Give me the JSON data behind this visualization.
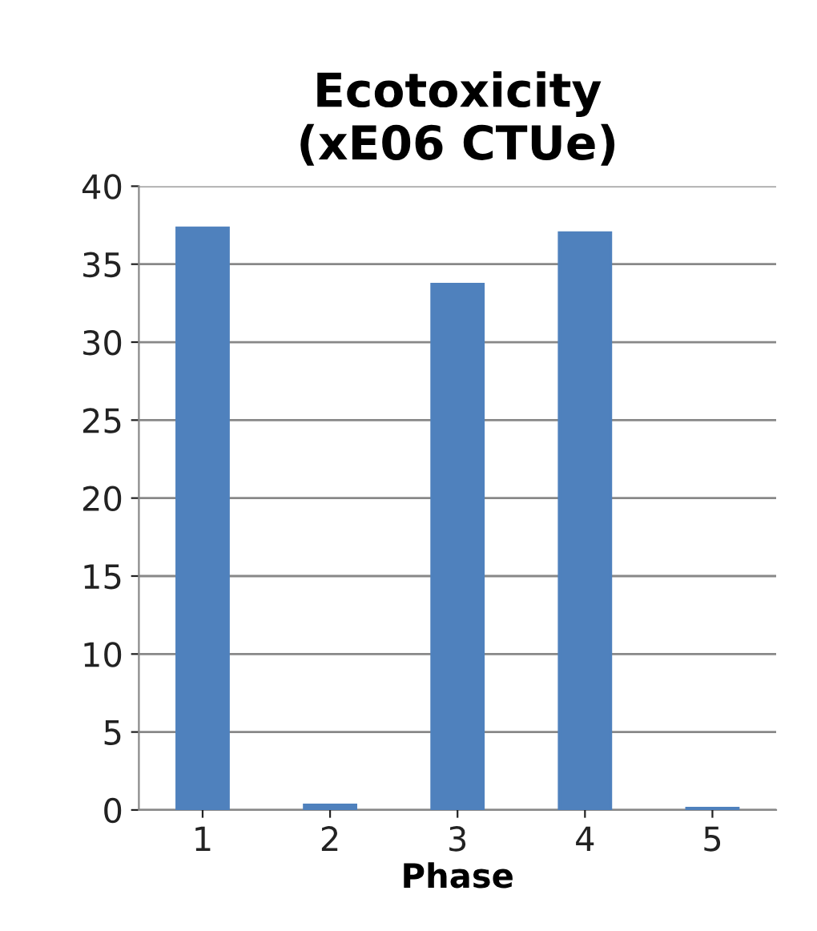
{
  "chart_data": {
    "type": "bar",
    "title": "Ecotoxicity\n(xE06 CTUe)",
    "xlabel": "Phase",
    "categories": [
      "1",
      "2",
      "3",
      "4",
      "5"
    ],
    "values": [
      37.3,
      0.3,
      33.7,
      37.0,
      0.1
    ],
    "color": "#4f81bd",
    "ylim": [
      0,
      40
    ],
    "yticks": [
      0,
      5,
      10,
      15,
      20,
      25,
      30,
      35,
      40
    ],
    "grid": "y"
  }
}
